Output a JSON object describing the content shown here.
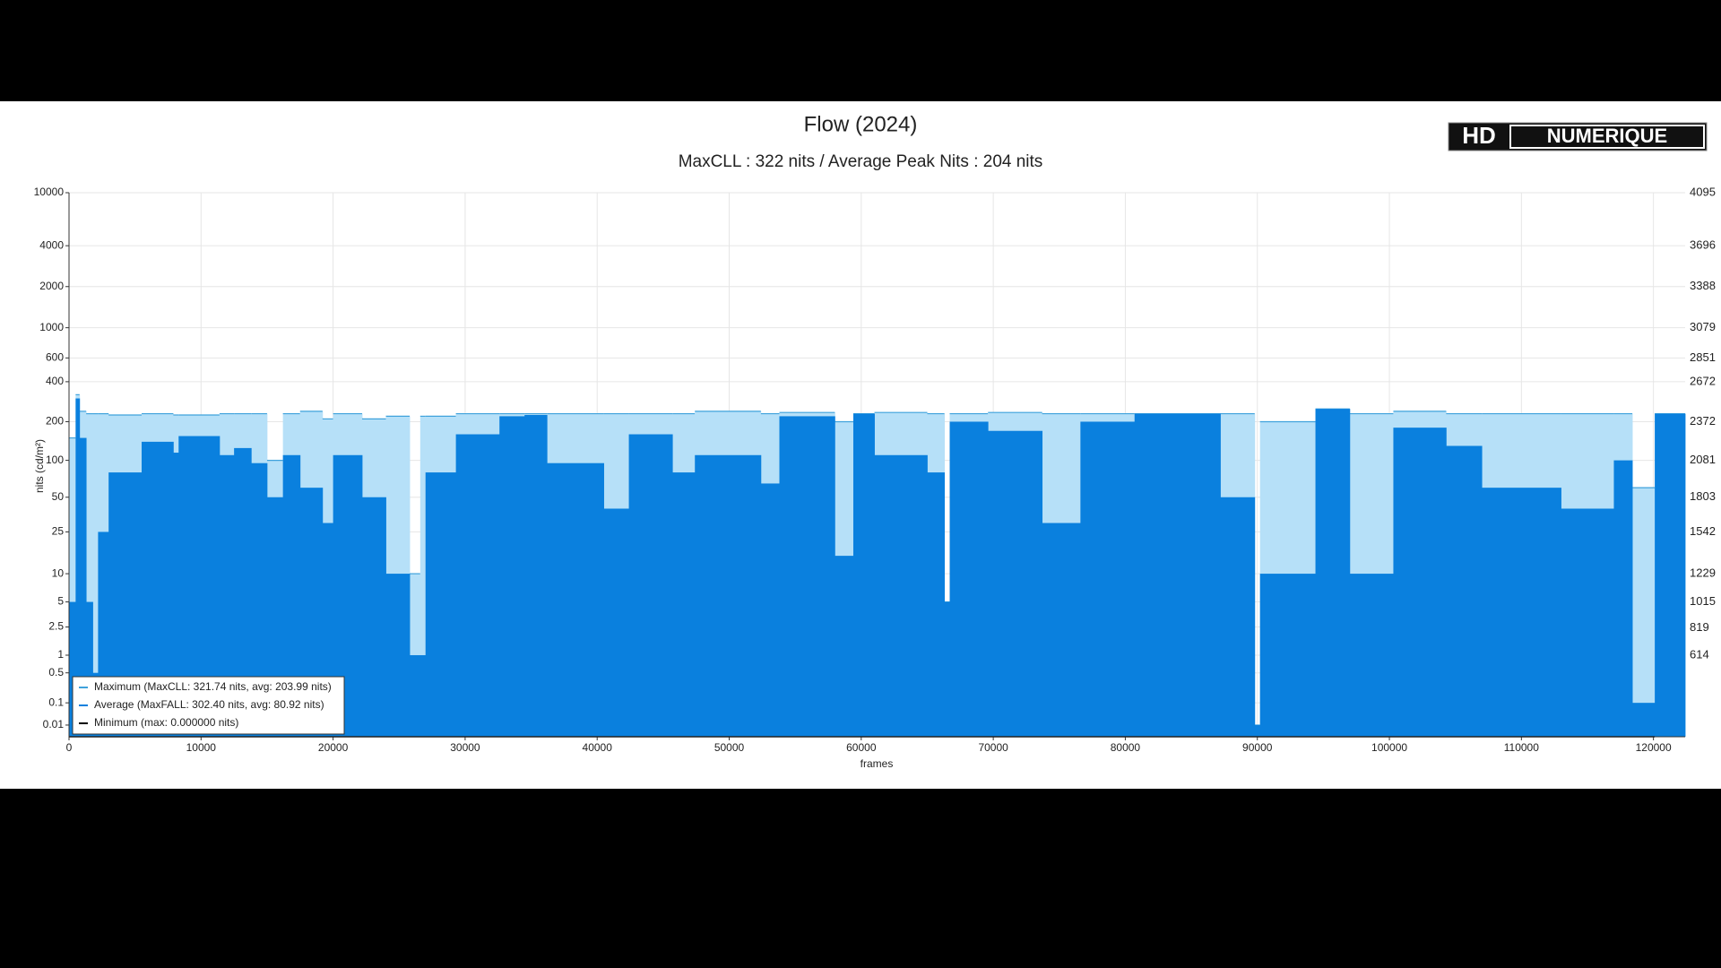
{
  "chart_data": {
    "type": "step-area",
    "title": "Flow (2024)",
    "subtitle": "MaxCLL : 322 nits / Average Peak Nits : 204 nits",
    "logo_text": [
      "HD",
      "NUMERIQUE"
    ],
    "x_label": "frames",
    "y_label": "nits (cd/m²)",
    "y_scale": "pq",
    "grid": true,
    "legend_position": "lower left",
    "xlim": [
      0,
      122400
    ],
    "xticks": [
      0,
      10000,
      20000,
      30000,
      40000,
      50000,
      60000,
      70000,
      80000,
      90000,
      100000,
      110000,
      120000
    ],
    "ylim": [
      0,
      10000
    ],
    "yticks": [
      10000,
      4000,
      2000,
      1000,
      600,
      400,
      200,
      100,
      50,
      25,
      10,
      5,
      2.5,
      1,
      0.5,
      0.1,
      0.01
    ],
    "y2lim": [
      0,
      4095
    ],
    "y2ticks": [
      4095,
      3696,
      3388,
      3079,
      2851,
      2672,
      2372,
      2081,
      1803,
      1542,
      1229,
      1015,
      819,
      614
    ],
    "x": [
      0,
      500,
      800,
      1300,
      1800,
      2200,
      3000,
      5500,
      7900,
      8300,
      11400,
      12500,
      13800,
      15000,
      16200,
      17500,
      19200,
      20000,
      22200,
      24000,
      25800,
      26600,
      27000,
      29300,
      32600,
      34500,
      36200,
      40500,
      42400,
      45700,
      47400,
      52400,
      53800,
      58000,
      59400,
      61000,
      65000,
      66300,
      66700,
      69600,
      73700,
      76600,
      80700,
      87200,
      89800,
      90200,
      94400,
      97000,
      100300,
      104300,
      107000,
      113000,
      117000,
      118400,
      120100
    ],
    "series": [
      {
        "name": "Maximum (MaxCLL: 321.74 nits, avg: 203.99 nits)",
        "color": "#b6e0f8",
        "line_color": "#3fa2dc",
        "values": [
          150,
          320,
          240,
          230,
          230,
          230,
          225,
          230,
          225,
          225,
          230,
          230,
          230,
          100,
          230,
          240,
          210,
          230,
          210,
          220,
          10,
          220,
          220,
          230,
          230,
          230,
          230,
          230,
          230,
          230,
          240,
          230,
          235,
          200,
          230,
          235,
          230,
          5,
          230,
          235,
          230,
          230,
          230,
          230,
          0.01,
          200,
          250,
          230,
          240,
          230,
          230,
          230,
          230,
          60,
          230
        ]
      },
      {
        "name": "Average (MaxFALL: 302.40 nits, avg: 80.92 nits)",
        "color": "#0a80de",
        "values": [
          5,
          300,
          150,
          5,
          0.5,
          25,
          80,
          140,
          115,
          155,
          110,
          125,
          95,
          50,
          110,
          60,
          30,
          110,
          50,
          10,
          1,
          1,
          80,
          160,
          220,
          225,
          95,
          40,
          160,
          80,
          110,
          65,
          220,
          15,
          230,
          110,
          80,
          5,
          200,
          170,
          30,
          200,
          230,
          50,
          0.01,
          10,
          250,
          10,
          180,
          130,
          60,
          40,
          100,
          0.1,
          230
        ]
      },
      {
        "name": "Minimum (max: 0.000000 nits)",
        "color": "#000000",
        "values": [
          0,
          0,
          0,
          0,
          0,
          0,
          0,
          0,
          0,
          0,
          0,
          0,
          0,
          0,
          0,
          0,
          0,
          0,
          0,
          0,
          0,
          0,
          0,
          0,
          0,
          0,
          0,
          0,
          0,
          0,
          0,
          0,
          0,
          0,
          0,
          0,
          0,
          0,
          0,
          0,
          0,
          0,
          0,
          0,
          0,
          0,
          0,
          0,
          0,
          0,
          0,
          0,
          0,
          0,
          0
        ]
      }
    ]
  }
}
